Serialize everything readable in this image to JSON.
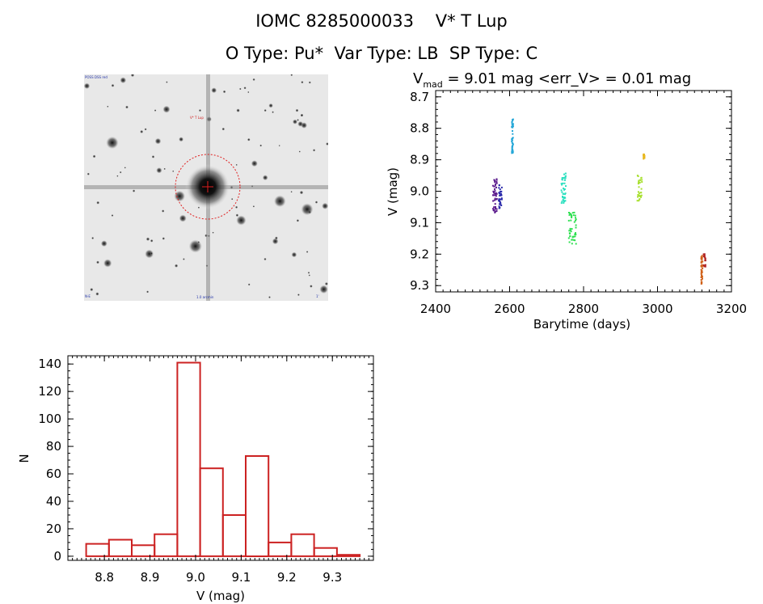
{
  "header": {
    "line1": "IOMC 8285000033    V* T Lup",
    "line2": "O Type: Pu*  Var Type: LB  SP Type: C"
  },
  "image_panel": {
    "label_top_left": "POSS DSS red",
    "label_target": "V* T Lup",
    "label_bottom_left": "N-E",
    "label_bottom_center": "1.0 arcmin",
    "label_bottom_right": "1'"
  },
  "chart_data": [
    {
      "type": "scatter",
      "title_main": "V",
      "title_sub": "mad",
      "title_rest": " = 9.01 mag <err_V> = 0.01 mag",
      "xlabel": "Barytime (days)",
      "ylabel": "V (mag)",
      "xlim": [
        2400,
        3200
      ],
      "ylim": [
        9.32,
        8.68
      ],
      "y_inverted": true,
      "x_ticks": [
        2400,
        2600,
        2800,
        3000,
        3200
      ],
      "y_ticks": [
        8.7,
        8.8,
        8.9,
        9.0,
        9.1,
        9.2,
        9.3
      ],
      "y_tick_labels": [
        "8.7",
        "8.8",
        "8.9",
        "9.0",
        "9.1",
        "9.2",
        "9.3"
      ],
      "groups": [
        {
          "color": "#5a1a8c",
          "x_range": [
            2555,
            2566
          ],
          "y_range": [
            8.96,
            9.07
          ]
        },
        {
          "color": "#2a2aaa",
          "x_range": [
            2570,
            2580
          ],
          "y_range": [
            8.98,
            9.06
          ]
        },
        {
          "color": "#27a8d8",
          "x_range": [
            2606,
            2610
          ],
          "y_range": [
            8.77,
            8.88
          ]
        },
        {
          "color": "#2de0c0",
          "x_range": [
            2740,
            2752
          ],
          "y_range": [
            8.94,
            9.04
          ]
        },
        {
          "color": "#2ee050",
          "x_range": [
            2760,
            2780
          ],
          "y_range": [
            9.06,
            9.17
          ]
        },
        {
          "color": "#a8e030",
          "x_range": [
            2945,
            2958
          ],
          "y_range": [
            8.95,
            9.03
          ]
        },
        {
          "color": "#e8b820",
          "x_range": [
            2962,
            2966
          ],
          "y_range": [
            8.88,
            8.9
          ]
        },
        {
          "color": "#d06018",
          "x_range": [
            3118,
            3122
          ],
          "y_range": [
            9.2,
            9.3
          ]
        },
        {
          "color": "#b02020",
          "x_range": [
            3124,
            3130
          ],
          "y_range": [
            9.2,
            9.24
          ]
        }
      ]
    },
    {
      "type": "bar",
      "xlabel": "V (mag)",
      "ylabel": "N",
      "xlim": [
        8.72,
        9.39
      ],
      "ylim": [
        -3,
        146
      ],
      "x_ticks": [
        8.8,
        8.9,
        9.0,
        9.1,
        9.2,
        9.3
      ],
      "x_tick_labels": [
        "8.8",
        "8.9",
        "9.0",
        "9.1",
        "9.2",
        "9.3"
      ],
      "y_ticks": [
        0,
        20,
        40,
        60,
        80,
        100,
        120,
        140
      ],
      "y_tick_labels": [
        "0",
        "20",
        "40",
        "60",
        "80",
        "100",
        "120",
        "140"
      ],
      "bar_color": "#cc2222",
      "bin_width": 0.05,
      "bin_starts": [
        8.76,
        8.81,
        8.86,
        8.91,
        8.96,
        9.01,
        9.06,
        9.11,
        9.16,
        9.21,
        9.26,
        9.31
      ],
      "values": [
        9,
        12,
        8,
        16,
        141,
        64,
        30,
        73,
        10,
        16,
        6,
        1
      ]
    }
  ]
}
